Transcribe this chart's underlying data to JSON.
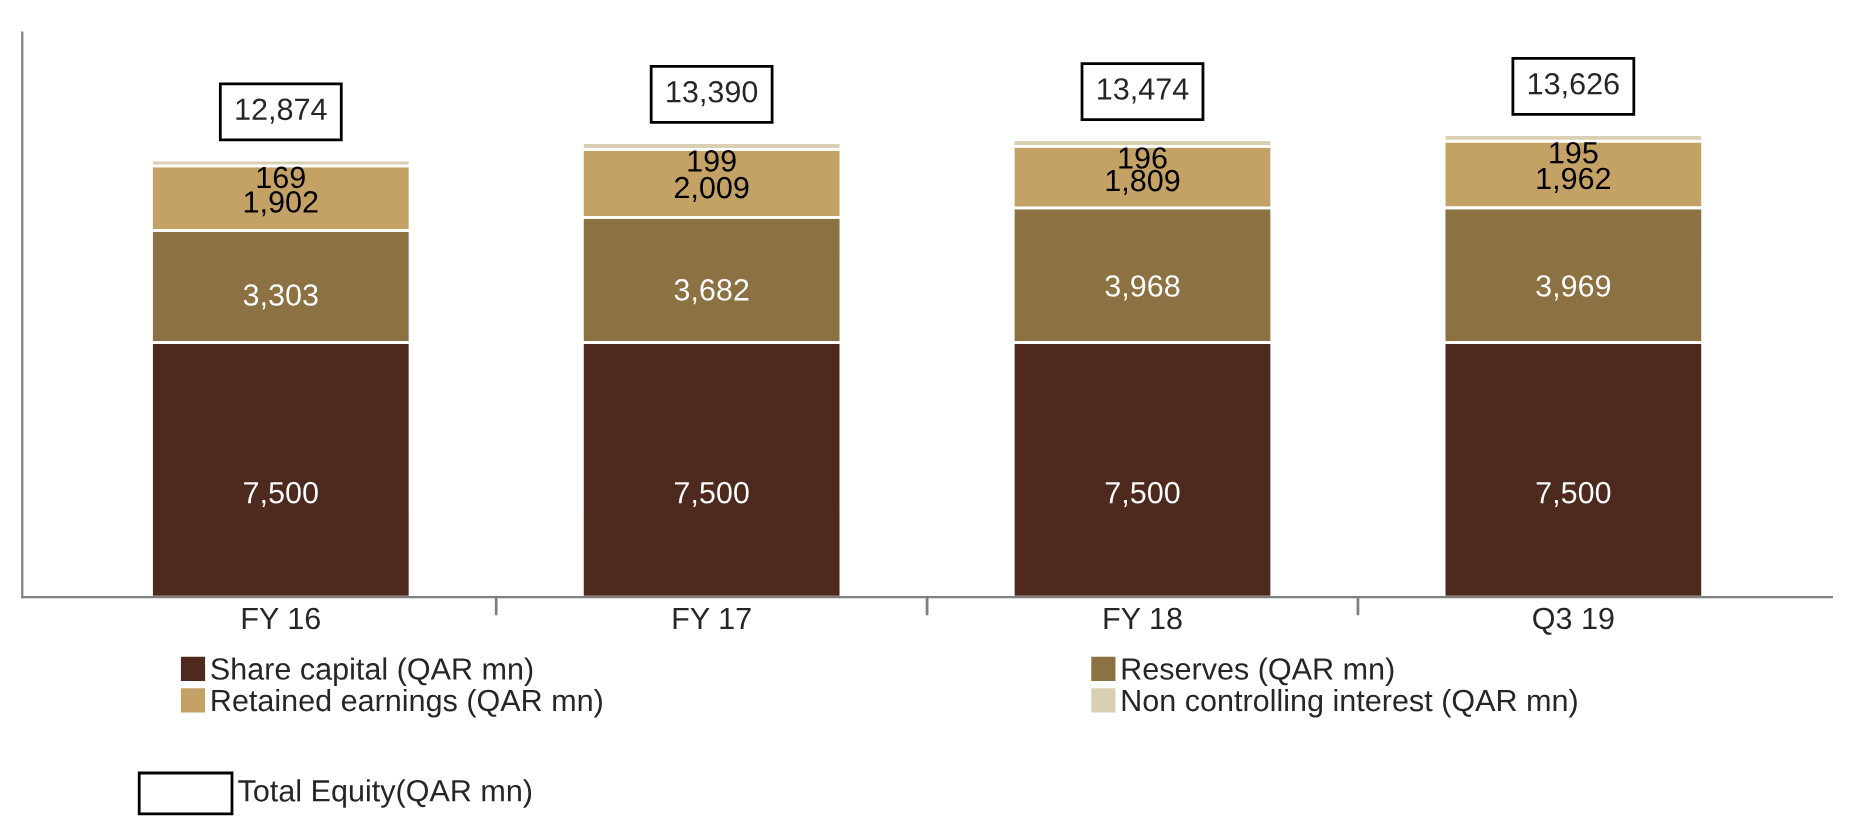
{
  "chart_data": {
    "type": "bar",
    "stacked": true,
    "categories": [
      "FY 16",
      "FY 17",
      "FY 18",
      "Q3 19"
    ],
    "series": [
      {
        "name": "Share capital (QAR mn)",
        "color": "#4e2a1e",
        "values": [
          7500,
          7500,
          7500,
          7500
        ],
        "value_labels": [
          "7,500",
          "7,500",
          "7,500",
          "7,500"
        ]
      },
      {
        "name": "Reserves (QAR mn)",
        "color": "#8c7143",
        "values": [
          3303,
          3682,
          3968,
          3969
        ],
        "value_labels": [
          "3,303",
          "3,682",
          "3,968",
          "3,969"
        ]
      },
      {
        "name": "Retained earnings (QAR mn)",
        "color": "#c4a265",
        "values": [
          1902,
          2009,
          1809,
          1962
        ],
        "value_labels": [
          "1,902",
          "2,009",
          "1,809",
          "1,962"
        ]
      },
      {
        "name": "Non controlling interest (QAR mn)",
        "color": "#d9d0b4",
        "values": [
          169,
          199,
          196,
          195
        ],
        "value_labels": [
          "169",
          "199",
          "196",
          "195"
        ]
      }
    ],
    "totals": [
      "12,874",
      "13,390",
      "13,474",
      "13,626"
    ],
    "annotations": [
      "Total Equity(QAR mn)"
    ],
    "legend": "bottom",
    "grid": false
  }
}
